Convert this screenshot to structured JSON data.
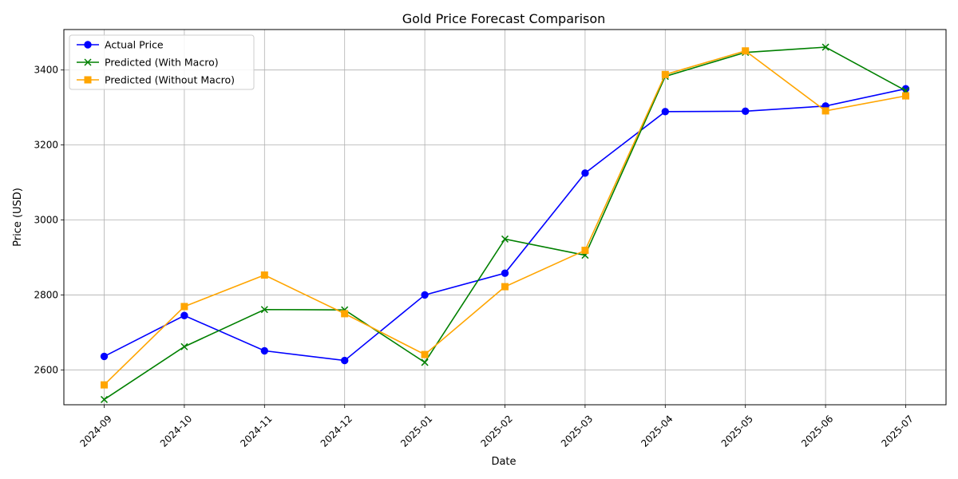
{
  "chart_data": {
    "type": "line",
    "title": "Gold Price Forecast Comparison",
    "xlabel": "Date",
    "ylabel": "Price (USD)",
    "categories": [
      "2024-09",
      "2024-10",
      "2024-11",
      "2024-12",
      "2025-01",
      "2025-02",
      "2025-03",
      "2025-04",
      "2025-05",
      "2025-06",
      "2025-07"
    ],
    "ylim": [
      2507,
      3508
    ],
    "yticks": [
      2600,
      2800,
      3000,
      3200,
      3400
    ],
    "grid": true,
    "legend_position": "top-left",
    "series": [
      {
        "name": "Actual Price",
        "color": "#0000ff",
        "marker": "circle",
        "values": [
          2636,
          2745,
          2651,
          2625,
          2800,
          2858,
          3125,
          3289,
          3290,
          3304,
          3350
        ]
      },
      {
        "name": "Predicted (With Macro)",
        "color": "#008000",
        "marker": "x",
        "values": [
          2521,
          2662,
          2761,
          2760,
          2620,
          2949,
          2906,
          3383,
          3447,
          3461,
          3345
        ]
      },
      {
        "name": "Predicted (Without Macro)",
        "color": "#ffa500",
        "marker": "square",
        "values": [
          2560,
          2769,
          2853,
          2750,
          2641,
          2822,
          2919,
          3388,
          3451,
          3291,
          3331
        ]
      }
    ]
  }
}
